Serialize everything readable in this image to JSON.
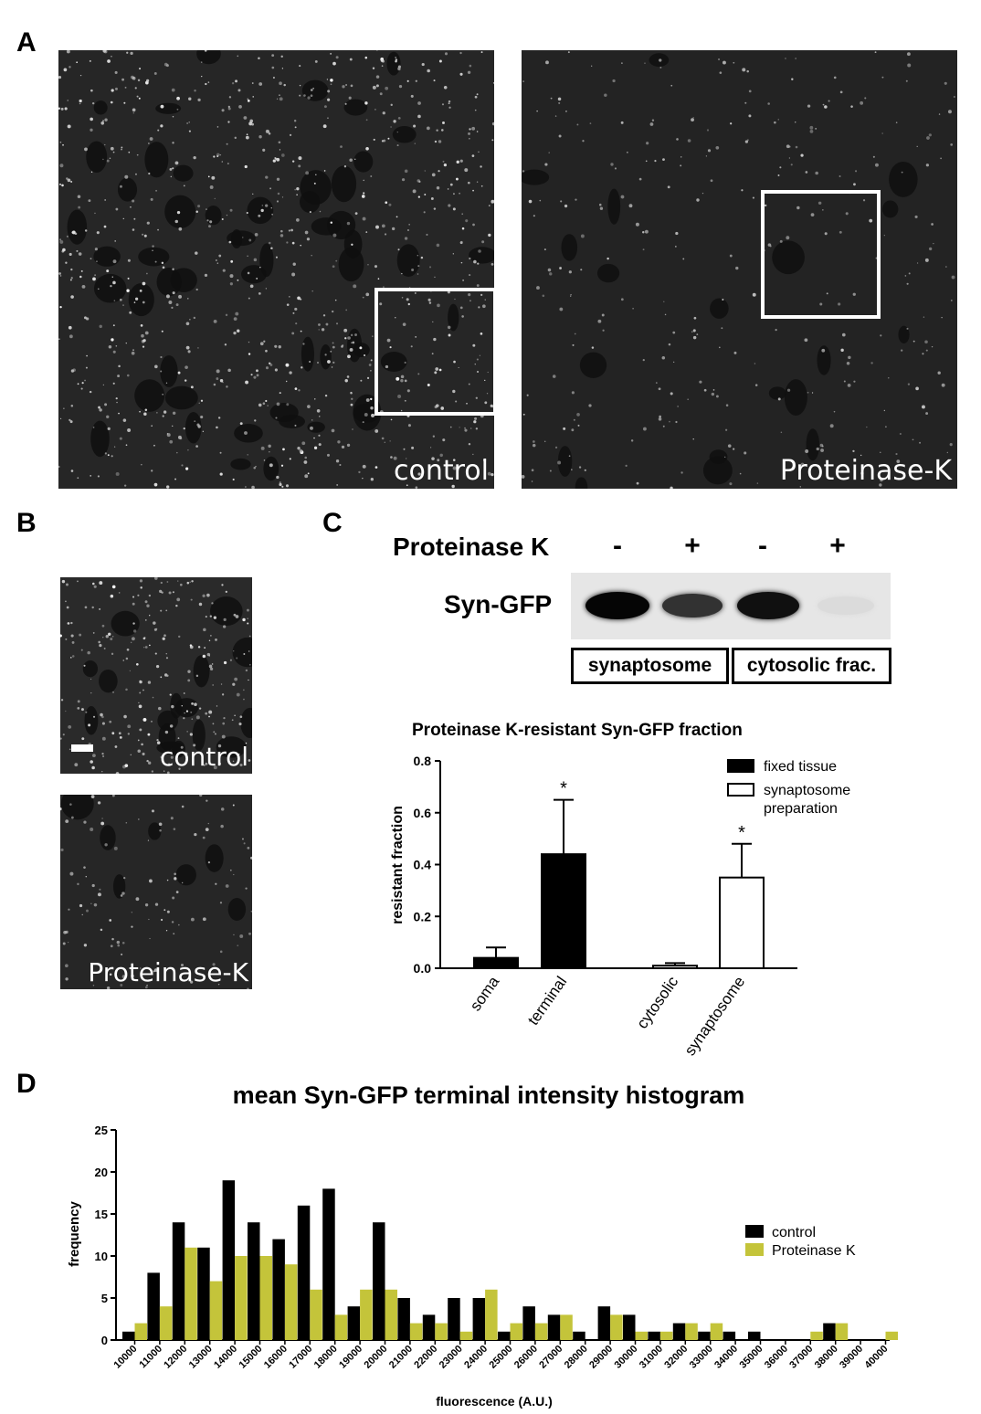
{
  "panels": {
    "a": {
      "letter": "A",
      "left_label": "control",
      "right_label": "Proteinase-K"
    },
    "b": {
      "letter": "B",
      "top_label": "control",
      "bottom_label": "Proteinase-K"
    },
    "c": {
      "letter": "C",
      "blot": {
        "treatment_label": "Proteinase K",
        "lanes": [
          "-",
          "+",
          "-",
          "+"
        ],
        "band_label": "Syn-GFP",
        "fractions": [
          "synaptosome",
          "cytosolic frac."
        ],
        "band_intensities": [
          1.0,
          0.8,
          0.95,
          0.05
        ]
      },
      "chart_data": {
        "type": "bar",
        "title": "Proteinase K-resistant Syn-GFP fraction",
        "ylabel": "resistant fraction",
        "xlabel": "",
        "ylim": [
          0,
          0.8
        ],
        "yticks": [
          "0.0",
          "0.2",
          "0.4",
          "0.6",
          "0.8"
        ],
        "categories": [
          "soma",
          "terminal",
          "cytosolic",
          "synaptosome"
        ],
        "values": [
          0.04,
          0.44,
          0.01,
          0.35
        ],
        "errors": [
          0.04,
          0.21,
          0.01,
          0.13
        ],
        "groups": [
          "fixed tissue",
          "fixed tissue",
          "synaptosome preparation",
          "synaptosome preparation"
        ],
        "significance": [
          "",
          "*",
          "",
          "*"
        ],
        "legend": [
          {
            "label": "fixed tissue",
            "fill": "#000000"
          },
          {
            "label": "synaptosome preparation",
            "fill": "#ffffff"
          }
        ],
        "legend_position": "top-right"
      }
    },
    "d": {
      "letter": "D",
      "chart_data": {
        "type": "bar",
        "title": "mean Syn-GFP terminal intensity histogram",
        "xlabel": "fluorescence (A.U.)",
        "ylabel": "frequency",
        "ylim": [
          0,
          25
        ],
        "yticks": [
          "0",
          "5",
          "10",
          "15",
          "20",
          "25"
        ],
        "categories": [
          "10000",
          "11000",
          "12000",
          "13000",
          "14000",
          "15000",
          "16000",
          "17000",
          "18000",
          "19000",
          "20000",
          "21000",
          "22000",
          "23000",
          "24000",
          "25000",
          "26000",
          "27000",
          "28000",
          "29000",
          "30000",
          "31000",
          "32000",
          "33000",
          "34000",
          "35000",
          "36000",
          "37000",
          "38000",
          "39000",
          "40000"
        ],
        "series": [
          {
            "name": "control",
            "color": "#000000",
            "values": [
              1,
              8,
              14,
              11,
              19,
              14,
              12,
              16,
              18,
              4,
              14,
              5,
              3,
              5,
              5,
              1,
              4,
              3,
              1,
              4,
              3,
              1,
              2,
              1,
              1,
              1,
              0,
              0,
              2,
              0,
              0
            ]
          },
          {
            "name": "Proteinase K",
            "color": "#c4c43a",
            "values": [
              2,
              4,
              11,
              7,
              10,
              10,
              9,
              6,
              3,
              6,
              6,
              2,
              2,
              1,
              6,
              2,
              2,
              3,
              0,
              3,
              1,
              1,
              2,
              2,
              0,
              0,
              0,
              1,
              2,
              0,
              1
            ]
          }
        ],
        "legend_position": "right"
      }
    }
  }
}
